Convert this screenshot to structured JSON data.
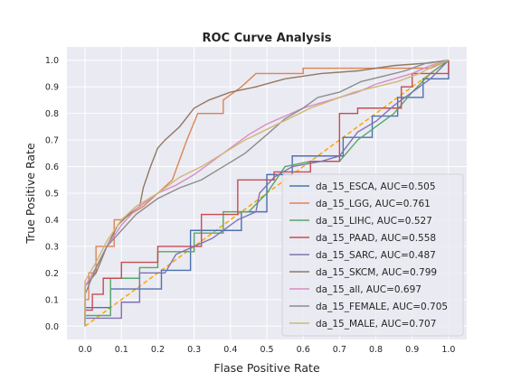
{
  "chart_data": {
    "type": "line",
    "title": "ROC Curve Analysis",
    "xlabel": "Flase Positive Rate",
    "ylabel": "True Positive Rate",
    "xlim": [
      -0.05,
      1.05
    ],
    "ylim": [
      -0.05,
      1.05
    ],
    "xticks": [
      "0.0",
      "0.1",
      "0.2",
      "0.3",
      "0.4",
      "0.5",
      "0.6",
      "0.7",
      "0.8",
      "0.9",
      "1.0"
    ],
    "yticks": [
      "0.0",
      "0.1",
      "0.2",
      "0.3",
      "0.4",
      "0.5",
      "0.6",
      "0.7",
      "0.8",
      "0.9",
      "1.0"
    ],
    "grid": true,
    "legend_position": "lower-right",
    "reference_line": {
      "x": [
        0,
        1
      ],
      "y": [
        0,
        1
      ],
      "style": "dashed",
      "color": "#ffa500"
    },
    "series": [
      {
        "name": "da_15_ESCA, AUC=0.505",
        "color": "#4c72b0",
        "points": [
          [
            0,
            0
          ],
          [
            0,
            0.07
          ],
          [
            0.07,
            0.07
          ],
          [
            0.07,
            0.14
          ],
          [
            0.21,
            0.14
          ],
          [
            0.21,
            0.21
          ],
          [
            0.29,
            0.21
          ],
          [
            0.29,
            0.36
          ],
          [
            0.43,
            0.36
          ],
          [
            0.43,
            0.43
          ],
          [
            0.5,
            0.43
          ],
          [
            0.5,
            0.57
          ],
          [
            0.57,
            0.57
          ],
          [
            0.57,
            0.64
          ],
          [
            0.64,
            0.64
          ],
          [
            0.71,
            0.64
          ],
          [
            0.71,
            0.71
          ],
          [
            0.79,
            0.71
          ],
          [
            0.79,
            0.79
          ],
          [
            0.86,
            0.79
          ],
          [
            0.86,
            0.86
          ],
          [
            0.93,
            0.86
          ],
          [
            0.93,
            0.93
          ],
          [
            1.0,
            0.93
          ],
          [
            1.0,
            1.0
          ]
        ]
      },
      {
        "name": "da_15_LGG, AUC=0.761",
        "color": "#dd8452",
        "points": [
          [
            0,
            0
          ],
          [
            0,
            0.1
          ],
          [
            0.01,
            0.1
          ],
          [
            0.01,
            0.2
          ],
          [
            0.03,
            0.2
          ],
          [
            0.03,
            0.3
          ],
          [
            0.08,
            0.3
          ],
          [
            0.08,
            0.4
          ],
          [
            0.1,
            0.4
          ],
          [
            0.16,
            0.45
          ],
          [
            0.2,
            0.5
          ],
          [
            0.24,
            0.55
          ],
          [
            0.28,
            0.7
          ],
          [
            0.31,
            0.8
          ],
          [
            0.38,
            0.8
          ],
          [
            0.38,
            0.85
          ],
          [
            0.43,
            0.9
          ],
          [
            0.47,
            0.95
          ],
          [
            0.55,
            0.95
          ],
          [
            0.6,
            0.95
          ],
          [
            0.6,
            0.97
          ],
          [
            0.9,
            0.97
          ],
          [
            0.95,
            0.97
          ],
          [
            1.0,
            1.0
          ]
        ]
      },
      {
        "name": "da_15_LIHC, AUC=0.527",
        "color": "#55a868",
        "points": [
          [
            0,
            0
          ],
          [
            0,
            0.04
          ],
          [
            0.07,
            0.04
          ],
          [
            0.07,
            0.18
          ],
          [
            0.15,
            0.18
          ],
          [
            0.15,
            0.22
          ],
          [
            0.2,
            0.22
          ],
          [
            0.2,
            0.28
          ],
          [
            0.3,
            0.28
          ],
          [
            0.3,
            0.35
          ],
          [
            0.38,
            0.35
          ],
          [
            0.38,
            0.43
          ],
          [
            0.45,
            0.43
          ],
          [
            0.5,
            0.5
          ],
          [
            0.55,
            0.6
          ],
          [
            0.62,
            0.62
          ],
          [
            0.7,
            0.62
          ],
          [
            0.75,
            0.7
          ],
          [
            0.8,
            0.75
          ],
          [
            0.85,
            0.8
          ],
          [
            0.9,
            0.88
          ],
          [
            0.95,
            0.95
          ],
          [
            1.0,
            1.0
          ]
        ]
      },
      {
        "name": "da_15_PAAD, AUC=0.558",
        "color": "#c44e52",
        "points": [
          [
            0,
            0
          ],
          [
            0,
            0.06
          ],
          [
            0.02,
            0.06
          ],
          [
            0.02,
            0.12
          ],
          [
            0.05,
            0.12
          ],
          [
            0.05,
            0.18
          ],
          [
            0.1,
            0.18
          ],
          [
            0.1,
            0.24
          ],
          [
            0.2,
            0.24
          ],
          [
            0.2,
            0.3
          ],
          [
            0.32,
            0.3
          ],
          [
            0.32,
            0.42
          ],
          [
            0.42,
            0.42
          ],
          [
            0.42,
            0.55
          ],
          [
            0.52,
            0.55
          ],
          [
            0.52,
            0.58
          ],
          [
            0.62,
            0.58
          ],
          [
            0.62,
            0.62
          ],
          [
            0.7,
            0.62
          ],
          [
            0.7,
            0.8
          ],
          [
            0.75,
            0.8
          ],
          [
            0.75,
            0.82
          ],
          [
            0.87,
            0.82
          ],
          [
            0.87,
            0.9
          ],
          [
            0.9,
            0.9
          ],
          [
            0.9,
            0.95
          ],
          [
            1.0,
            0.95
          ],
          [
            1.0,
            1.0
          ]
        ]
      },
      {
        "name": "da_15_SARC, AUC=0.487",
        "color": "#8172b3",
        "points": [
          [
            0,
            0
          ],
          [
            0,
            0.03
          ],
          [
            0.1,
            0.03
          ],
          [
            0.1,
            0.09
          ],
          [
            0.15,
            0.09
          ],
          [
            0.15,
            0.2
          ],
          [
            0.22,
            0.2
          ],
          [
            0.25,
            0.27
          ],
          [
            0.3,
            0.3
          ],
          [
            0.35,
            0.33
          ],
          [
            0.42,
            0.4
          ],
          [
            0.47,
            0.43
          ],
          [
            0.48,
            0.5
          ],
          [
            0.52,
            0.56
          ],
          [
            0.57,
            0.6
          ],
          [
            0.65,
            0.62
          ],
          [
            0.7,
            0.64
          ],
          [
            0.75,
            0.73
          ],
          [
            0.8,
            0.77
          ],
          [
            0.85,
            0.83
          ],
          [
            0.9,
            0.88
          ],
          [
            0.95,
            0.93
          ],
          [
            1.0,
            1.0
          ]
        ]
      },
      {
        "name": "da_15_SKCM, AUC=0.799",
        "color": "#937860",
        "points": [
          [
            0,
            0
          ],
          [
            0,
            0.15
          ],
          [
            0.03,
            0.2
          ],
          [
            0.06,
            0.3
          ],
          [
            0.09,
            0.38
          ],
          [
            0.12,
            0.42
          ],
          [
            0.15,
            0.45
          ],
          [
            0.16,
            0.52
          ],
          [
            0.18,
            0.6
          ],
          [
            0.2,
            0.67
          ],
          [
            0.22,
            0.7
          ],
          [
            0.26,
            0.75
          ],
          [
            0.3,
            0.82
          ],
          [
            0.34,
            0.85
          ],
          [
            0.4,
            0.88
          ],
          [
            0.47,
            0.9
          ],
          [
            0.55,
            0.93
          ],
          [
            0.65,
            0.95
          ],
          [
            0.75,
            0.96
          ],
          [
            0.85,
            0.98
          ],
          [
            0.95,
            0.99
          ],
          [
            1.0,
            1.0
          ]
        ]
      },
      {
        "name": "da_15_all, AUC=0.697",
        "color": "#da8bc3",
        "points": [
          [
            0,
            0
          ],
          [
            0,
            0.15
          ],
          [
            0.03,
            0.22
          ],
          [
            0.06,
            0.3
          ],
          [
            0.1,
            0.38
          ],
          [
            0.14,
            0.44
          ],
          [
            0.2,
            0.5
          ],
          [
            0.25,
            0.53
          ],
          [
            0.3,
            0.57
          ],
          [
            0.35,
            0.62
          ],
          [
            0.4,
            0.67
          ],
          [
            0.45,
            0.72
          ],
          [
            0.5,
            0.76
          ],
          [
            0.55,
            0.79
          ],
          [
            0.6,
            0.82
          ],
          [
            0.65,
            0.84
          ],
          [
            0.7,
            0.86
          ],
          [
            0.75,
            0.88
          ],
          [
            0.8,
            0.91
          ],
          [
            0.85,
            0.93
          ],
          [
            0.9,
            0.95
          ],
          [
            0.95,
            0.98
          ],
          [
            1.0,
            1.0
          ]
        ]
      },
      {
        "name": "da_15_FEMALE, AUC=0.705",
        "color": "#8c8c8c",
        "points": [
          [
            0,
            0
          ],
          [
            0,
            0.12
          ],
          [
            0.03,
            0.22
          ],
          [
            0.06,
            0.3
          ],
          [
            0.1,
            0.36
          ],
          [
            0.14,
            0.42
          ],
          [
            0.2,
            0.48
          ],
          [
            0.26,
            0.52
          ],
          [
            0.32,
            0.55
          ],
          [
            0.38,
            0.6
          ],
          [
            0.44,
            0.65
          ],
          [
            0.5,
            0.72
          ],
          [
            0.55,
            0.78
          ],
          [
            0.6,
            0.82
          ],
          [
            0.64,
            0.86
          ],
          [
            0.7,
            0.88
          ],
          [
            0.76,
            0.92
          ],
          [
            0.82,
            0.94
          ],
          [
            0.88,
            0.96
          ],
          [
            0.94,
            0.99
          ],
          [
            1.0,
            1.0
          ]
        ]
      },
      {
        "name": "da_15_MALE, AUC=0.707",
        "color": "#ccb974",
        "points": [
          [
            0,
            0
          ],
          [
            0,
            0.17
          ],
          [
            0.03,
            0.24
          ],
          [
            0.06,
            0.32
          ],
          [
            0.1,
            0.4
          ],
          [
            0.14,
            0.45
          ],
          [
            0.2,
            0.5
          ],
          [
            0.26,
            0.56
          ],
          [
            0.32,
            0.6
          ],
          [
            0.38,
            0.65
          ],
          [
            0.44,
            0.7
          ],
          [
            0.5,
            0.74
          ],
          [
            0.56,
            0.78
          ],
          [
            0.62,
            0.82
          ],
          [
            0.68,
            0.85
          ],
          [
            0.74,
            0.88
          ],
          [
            0.8,
            0.9
          ],
          [
            0.86,
            0.92
          ],
          [
            0.92,
            0.95
          ],
          [
            0.96,
            0.98
          ],
          [
            1.0,
            1.0
          ]
        ]
      }
    ]
  }
}
